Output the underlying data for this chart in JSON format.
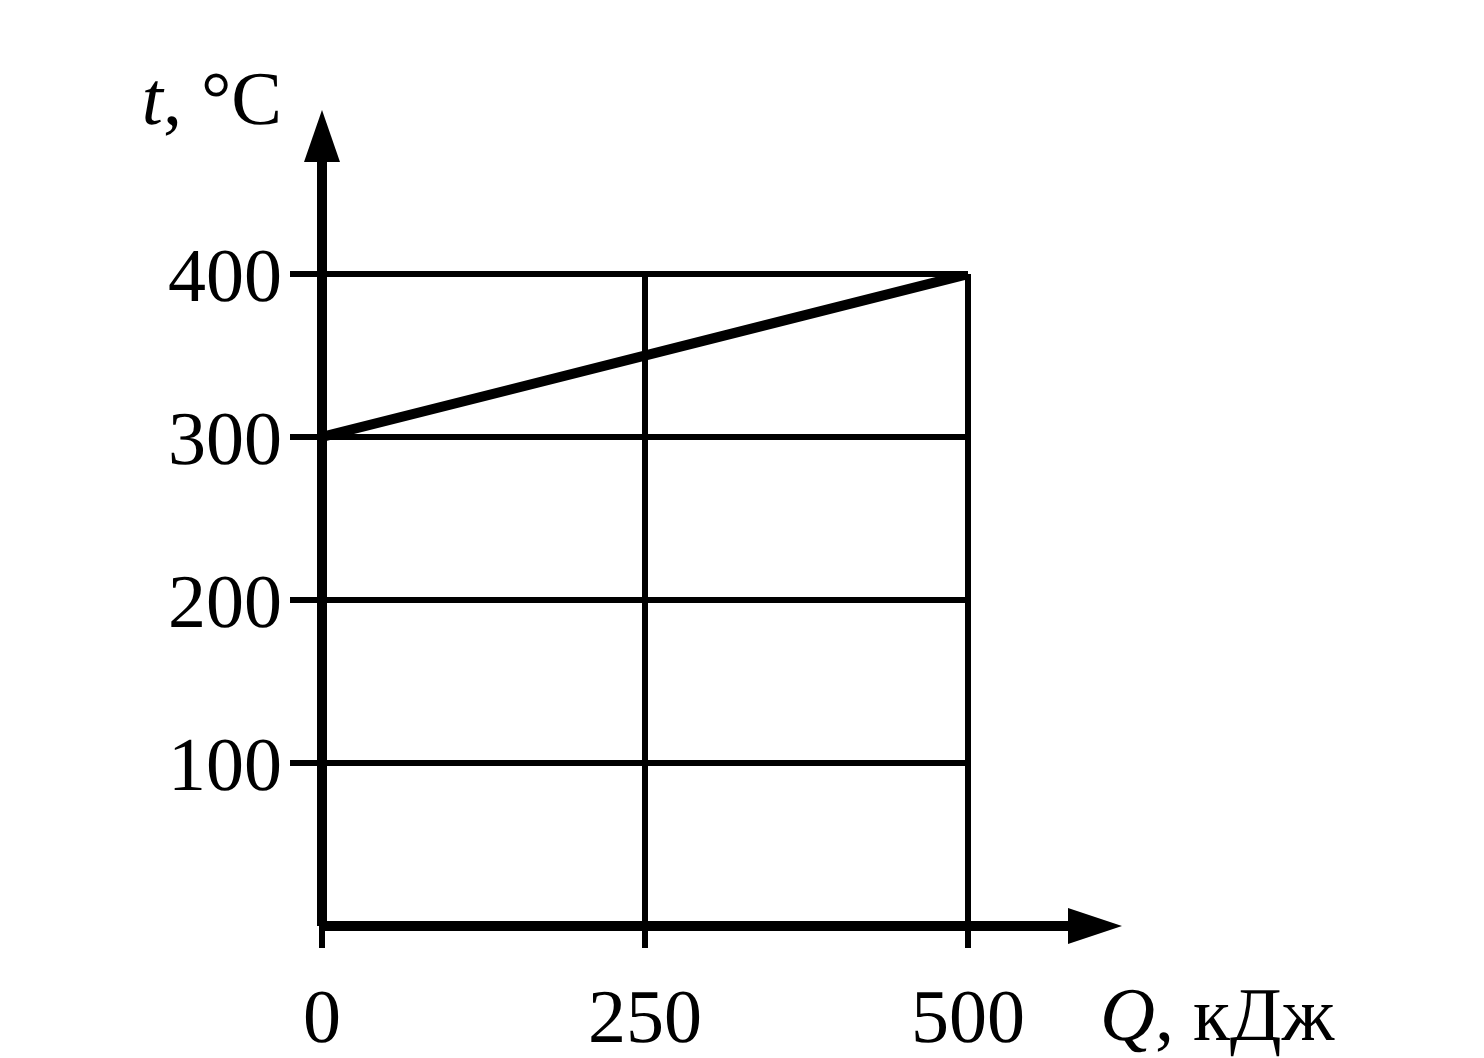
{
  "chart_data": {
    "type": "line",
    "xlabel": "Q, кДж",
    "ylabel": "t, °C",
    "x": [
      0,
      500
    ],
    "series": [
      {
        "color": "#000000",
        "values": [
          300,
          400
        ]
      }
    ],
    "xlim": [
      0,
      500
    ],
    "ylim": [
      0,
      400
    ],
    "xticks": [
      0,
      250,
      500
    ],
    "yticks": [
      100,
      200,
      300,
      400
    ],
    "grid": true,
    "marker": "none",
    "line_style": "solid"
  }
}
